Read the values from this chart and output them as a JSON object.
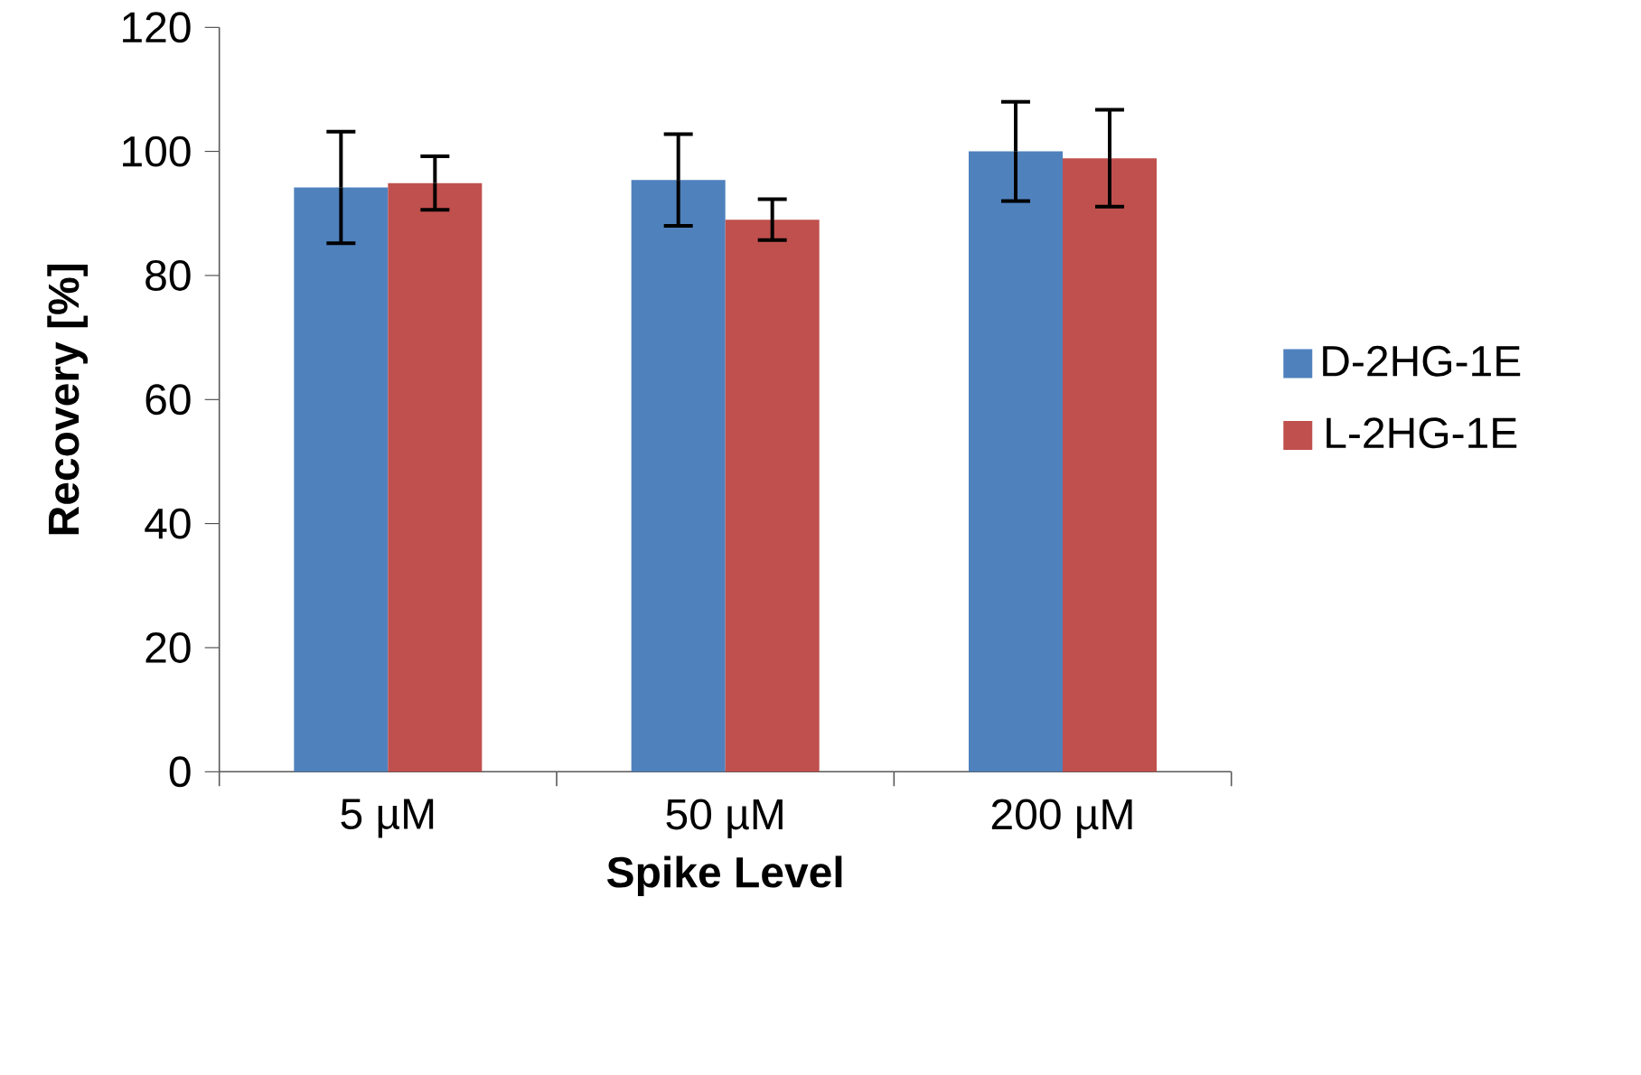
{
  "chart_data": {
    "type": "bar",
    "xlabel": "Spike Level",
    "ylabel": "Recovery [%]",
    "categories": [
      "5 µM",
      "50 µM",
      "200 µM"
    ],
    "series": [
      {
        "name": "D-2HG-1E",
        "color": "#4f81bd",
        "values": [
          94.2,
          95.4,
          100.0
        ],
        "errors": [
          9,
          7.4,
          8
        ]
      },
      {
        "name": "L-2HG-1E",
        "color": "#c0504d",
        "values": [
          94.9,
          89.0,
          98.9
        ],
        "errors": [
          4.3,
          3.3,
          7.8
        ]
      }
    ],
    "ylim": [
      0,
      120
    ],
    "yticks": [
      0,
      20,
      40,
      60,
      80,
      100,
      120
    ],
    "grid": false,
    "legend": "right"
  }
}
